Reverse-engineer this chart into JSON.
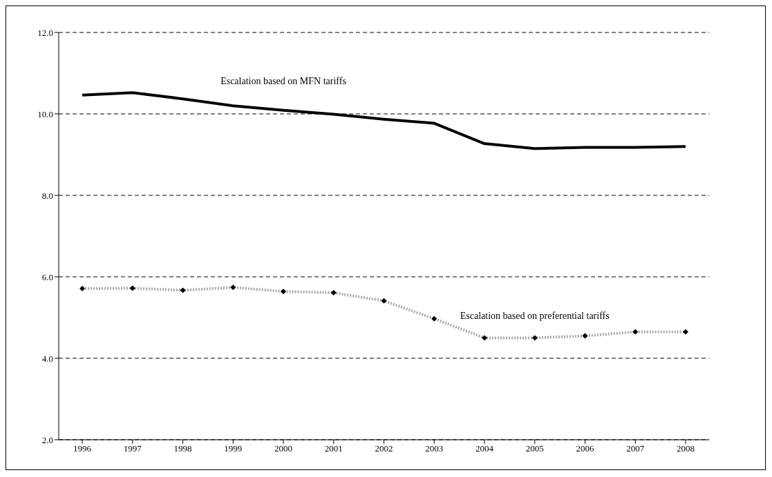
{
  "chart_data": {
    "type": "line",
    "categories": [
      "1996",
      "1997",
      "1998",
      "1999",
      "2000",
      "2001",
      "2002",
      "2003",
      "2004",
      "2005",
      "2006",
      "2007",
      "2008"
    ],
    "series": [
      {
        "name": "Escalation based on MFN tariffs",
        "color": "#000000",
        "marker": "none",
        "line_style": "solid",
        "values": [
          10.46,
          10.52,
          10.37,
          10.2,
          10.09,
          9.99,
          9.87,
          9.77,
          9.27,
          9.15,
          9.18,
          9.18,
          9.2
        ]
      },
      {
        "name": "Escalation based on preferential tariffs",
        "color": "#a8a8a8",
        "marker": "diamond",
        "line_style": "dotted",
        "values": [
          5.71,
          5.72,
          5.67,
          5.74,
          5.64,
          5.61,
          5.41,
          4.97,
          4.5,
          4.5,
          4.55,
          4.65,
          4.65
        ]
      }
    ],
    "ylim": [
      2,
      12
    ],
    "yticks": [
      {
        "value": 2,
        "label": "2.0"
      },
      {
        "value": 4,
        "label": "4.0"
      },
      {
        "value": 6,
        "label": "6.0"
      },
      {
        "value": 8,
        "label": "8.0"
      },
      {
        "value": 10,
        "label": "10.0"
      },
      {
        "value": 12,
        "label": "12.0"
      }
    ],
    "grid": "y"
  }
}
